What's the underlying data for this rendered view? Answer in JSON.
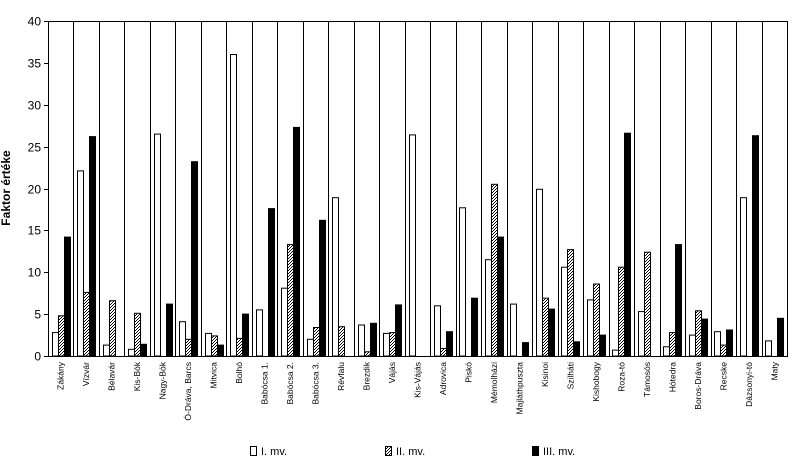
{
  "chart_data": {
    "type": "bar",
    "ylabel": "Faktor értéke",
    "xlabel": "",
    "title": "",
    "ylim": [
      0,
      40
    ],
    "yticks": [
      0,
      5,
      10,
      15,
      20,
      25,
      30,
      35,
      40
    ],
    "grid": "vertical category separators",
    "legend": "bottom",
    "categories": [
      "Zákány",
      "Vízvár",
      "Bélavár",
      "Kis-Bók",
      "Nagy-Bók",
      "Ó-Dráva, Barcs",
      "Mitvica",
      "Bolhó",
      "Babócsa 1.",
      "Babócsa 2.",
      "Babócsa 3.",
      "Révfalu",
      "Brezdik",
      "Vájás",
      "Kis-Vájás",
      "Adrovica",
      "Piskó",
      "Mémolházi",
      "Majláthpuszta",
      "Kisinoi",
      "Szilháti",
      "Kishobogy",
      "Roza-tó",
      "Támosós",
      "Hótedra",
      "Boros-Dráva",
      "Recske",
      "Dázsonyi-tó",
      "Maty"
    ],
    "series": [
      {
        "name": "I. mv.",
        "fill": "white",
        "values": [
          2.8,
          22.1,
          1.3,
          0.8,
          26.5,
          4.1,
          2.7,
          36.0,
          5.5,
          8.1,
          2.0,
          18.9,
          3.7,
          2.7,
          26.4,
          6.0,
          17.7,
          11.5,
          6.2,
          19.9,
          10.6,
          6.7,
          0.7,
          5.3,
          1.1,
          2.5,
          2.9,
          18.9,
          1.8
        ]
      },
      {
        "name": "II. mv.",
        "fill": "hatched",
        "values": [
          4.8,
          7.6,
          6.6,
          5.1,
          0,
          2.0,
          2.4,
          2.1,
          0,
          13.3,
          3.4,
          3.5,
          0.5,
          2.8,
          0,
          0.9,
          0,
          20.5,
          0,
          6.9,
          12.7,
          8.6,
          10.6,
          12.4,
          2.8,
          5.4,
          1.3,
          0,
          0
        ]
      },
      {
        "name": "III. mv.",
        "fill": "black",
        "values": [
          14.2,
          26.2,
          0,
          1.4,
          6.2,
          23.2,
          1.3,
          5.0,
          17.6,
          27.3,
          16.2,
          0,
          3.9,
          6.1,
          0,
          2.9,
          6.9,
          14.2,
          1.6,
          5.6,
          1.7,
          2.5,
          26.6,
          0,
          13.3,
          4.4,
          3.1,
          26.3,
          4.5
        ]
      }
    ]
  }
}
